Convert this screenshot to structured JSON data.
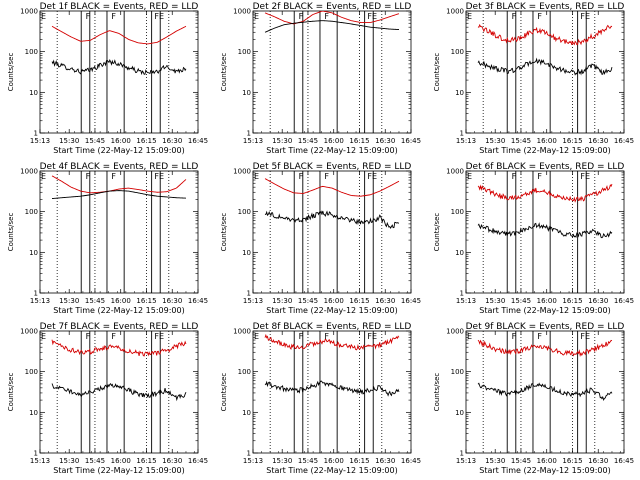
{
  "chart_data": [
    {
      "type": "line",
      "title": "Det 1f BLACK = Events, RED = LLD",
      "xlabel": "Start Time (22-May-12 15:09:00)",
      "ylabel": "Counts/sec",
      "yscale": "log",
      "ylim": [
        1,
        1000
      ],
      "xlim": [
        "15:13",
        "16:45"
      ],
      "y_ticks": [
        "1",
        "10",
        "100",
        "1000"
      ],
      "x_ticks": [
        "15:13",
        "15:30",
        "15:45",
        "16:00",
        "16:15",
        "16:30",
        "16:45"
      ],
      "series": [
        {
          "color": "#d40000",
          "shape": "red-smooth",
          "values": [
            420,
            310,
            230,
            180,
            190,
            260,
            330,
            280,
            200,
            165,
            155,
            170,
            230,
            320,
            420
          ]
        },
        {
          "color": "#000000",
          "shape": "black-noisy",
          "values": [
            55,
            45,
            38,
            32,
            35,
            46,
            58,
            50,
            40,
            33,
            30,
            32,
            44,
            32,
            40
          ]
        }
      ],
      "dotted_x": [
        "15:23",
        "15:45",
        "16:15",
        "16:28"
      ],
      "solid_x": [
        "15:37",
        "15:42",
        "15:52",
        "16:02",
        "16:18",
        "16:23"
      ],
      "markers": [
        {
          "label": "E",
          "x": "15:13"
        },
        {
          "label": "F",
          "x": "15:39"
        },
        {
          "label": "F",
          "x": "15:54"
        },
        {
          "label": "FE",
          "x": "16:19"
        }
      ]
    },
    {
      "type": "line",
      "title": "Det 2f BLACK = Events, RED = LLD",
      "xlabel": "Start Time (22-May-12 15:09:00)",
      "ylabel": "Counts/sec",
      "yscale": "log",
      "ylim": [
        1,
        1000
      ],
      "xlim": [
        "15:13",
        "16:45"
      ],
      "y_ticks": [
        "1",
        "10",
        "100",
        "1000"
      ],
      "x_ticks": [
        "15:13",
        "15:30",
        "15:45",
        "16:00",
        "16:15",
        "16:30",
        "16:45"
      ],
      "series": [
        {
          "color": "#d40000",
          "shape": "red-smooth",
          "values": [
            900,
            720,
            560,
            480,
            560,
            820,
            1000,
            900,
            700,
            580,
            520,
            520,
            600,
            720,
            860
          ]
        },
        {
          "color": "#000000",
          "shape": "black-smooth",
          "values": [
            300,
            380,
            460,
            500,
            530,
            560,
            580,
            560,
            520,
            480,
            440,
            400,
            380,
            360,
            350
          ]
        }
      ],
      "dotted_x": [
        "15:23",
        "15:45",
        "16:15",
        "16:28"
      ],
      "solid_x": [
        "15:37",
        "15:42",
        "15:52",
        "16:02",
        "16:18",
        "16:23"
      ],
      "markers": [
        {
          "label": "E",
          "x": "15:13"
        },
        {
          "label": "F",
          "x": "15:39"
        },
        {
          "label": "F",
          "x": "15:54"
        },
        {
          "label": "FE",
          "x": "16:19"
        }
      ]
    },
    {
      "type": "line",
      "title": "Det 3f BLACK = Events, RED = LLD",
      "xlabel": "Start Time (22-May-12 15:09:00)",
      "ylabel": "Counts/sec",
      "yscale": "log",
      "ylim": [
        1,
        1000
      ],
      "xlim": [
        "15:13",
        "16:45"
      ],
      "y_ticks": [
        "1",
        "10",
        "100",
        "1000"
      ],
      "x_ticks": [
        "15:13",
        "15:30",
        "15:45",
        "16:00",
        "16:15",
        "16:30",
        "16:45"
      ],
      "series": [
        {
          "color": "#d40000",
          "shape": "red-noisy",
          "values": [
            420,
            320,
            240,
            190,
            200,
            260,
            340,
            300,
            220,
            180,
            165,
            180,
            240,
            330,
            450
          ]
        },
        {
          "color": "#000000",
          "shape": "black-noisy",
          "values": [
            55,
            45,
            38,
            33,
            36,
            48,
            60,
            52,
            42,
            34,
            31,
            33,
            45,
            30,
            38
          ]
        }
      ],
      "dotted_x": [
        "15:23",
        "15:45",
        "16:15",
        "16:28"
      ],
      "solid_x": [
        "15:37",
        "15:42",
        "15:52",
        "16:02",
        "16:18",
        "16:23"
      ],
      "markers": [
        {
          "label": "E",
          "x": "15:13"
        },
        {
          "label": "F",
          "x": "15:39"
        },
        {
          "label": "F",
          "x": "15:54"
        },
        {
          "label": "FE",
          "x": "16:19"
        }
      ]
    },
    {
      "type": "line",
      "title": "Det 4f BLACK = Events, RED = LLD",
      "xlabel": "Start Time (22-May-12 15:09:00)",
      "ylabel": "Counts/sec",
      "yscale": "log",
      "ylim": [
        1,
        1000
      ],
      "xlim": [
        "15:13",
        "16:45"
      ],
      "y_ticks": [
        "1",
        "10",
        "100",
        "1000"
      ],
      "x_ticks": [
        "15:13",
        "15:30",
        "15:45",
        "16:00",
        "16:15",
        "16:30",
        "16:45"
      ],
      "series": [
        {
          "color": "#d40000",
          "shape": "red-smooth",
          "values": [
            760,
            560,
            400,
            320,
            290,
            300,
            320,
            360,
            380,
            350,
            320,
            300,
            310,
            380,
            620
          ]
        },
        {
          "color": "#000000",
          "shape": "black-smooth",
          "values": [
            210,
            220,
            230,
            240,
            260,
            290,
            320,
            330,
            320,
            290,
            260,
            240,
            230,
            220,
            215
          ]
        }
      ],
      "dotted_x": [
        "15:23",
        "15:45",
        "16:15",
        "16:28"
      ],
      "solid_x": [
        "15:37",
        "15:42",
        "15:52",
        "16:02",
        "16:18",
        "16:23"
      ],
      "markers": [
        {
          "label": "E",
          "x": "15:13"
        },
        {
          "label": "F",
          "x": "15:39"
        },
        {
          "label": "F",
          "x": "15:54"
        },
        {
          "label": "FE",
          "x": "16:19"
        }
      ]
    },
    {
      "type": "line",
      "title": "Det 5f BLACK = Events, RED = LLD",
      "xlabel": "Start Time (22-May-12 15:09:00)",
      "ylabel": "Counts/sec",
      "yscale": "log",
      "ylim": [
        1,
        1000
      ],
      "xlim": [
        "15:13",
        "16:45"
      ],
      "y_ticks": [
        "1",
        "10",
        "100",
        "1000"
      ],
      "x_ticks": [
        "15:13",
        "15:30",
        "15:45",
        "16:00",
        "16:15",
        "16:30",
        "16:45"
      ],
      "series": [
        {
          "color": "#d40000",
          "shape": "red-smooth",
          "values": [
            650,
            480,
            360,
            290,
            280,
            340,
            420,
            380,
            300,
            250,
            240,
            260,
            320,
            420,
            560
          ]
        },
        {
          "color": "#000000",
          "shape": "black-noisy",
          "values": [
            95,
            80,
            70,
            62,
            64,
            78,
            92,
            84,
            70,
            60,
            56,
            58,
            72,
            40,
            55
          ]
        }
      ],
      "dotted_x": [
        "15:23",
        "15:45",
        "16:15",
        "16:28"
      ],
      "solid_x": [
        "15:37",
        "15:42",
        "15:52",
        "16:02",
        "16:18",
        "16:23"
      ],
      "markers": [
        {
          "label": "E",
          "x": "15:13"
        },
        {
          "label": "F",
          "x": "15:39"
        },
        {
          "label": "F",
          "x": "15:54"
        },
        {
          "label": "FE",
          "x": "16:19"
        }
      ]
    },
    {
      "type": "line",
      "title": "Det 6f BLACK = Events, RED = LLD",
      "xlabel": "Start Time (22-May-12 15:09:00)",
      "ylabel": "Counts/sec",
      "yscale": "log",
      "ylim": [
        1,
        1000
      ],
      "xlim": [
        "15:13",
        "16:45"
      ],
      "y_ticks": [
        "1",
        "10",
        "100",
        "1000"
      ],
      "x_ticks": [
        "15:13",
        "15:30",
        "15:45",
        "16:00",
        "16:15",
        "16:30",
        "16:45"
      ],
      "series": [
        {
          "color": "#d40000",
          "shape": "red-noisy",
          "values": [
            420,
            330,
            260,
            220,
            230,
            280,
            340,
            310,
            250,
            210,
            200,
            210,
            260,
            330,
            420
          ]
        },
        {
          "color": "#000000",
          "shape": "black-noisy",
          "values": [
            45,
            38,
            32,
            28,
            30,
            38,
            48,
            42,
            35,
            28,
            26,
            28,
            36,
            24,
            30
          ]
        }
      ],
      "dotted_x": [
        "15:23",
        "15:45",
        "16:15",
        "16:28"
      ],
      "solid_x": [
        "15:37",
        "15:42",
        "15:52",
        "16:02",
        "16:18",
        "16:23"
      ],
      "markers": [
        {
          "label": "E",
          "x": "15:13"
        },
        {
          "label": "F",
          "x": "15:39"
        },
        {
          "label": "F",
          "x": "15:54"
        },
        {
          "label": "FE",
          "x": "16:19"
        }
      ]
    },
    {
      "type": "line",
      "title": "Det 7f BLACK = Events, RED = LLD",
      "xlabel": "Start Time (22-May-12 15:09:00)",
      "ylabel": "Counts/sec",
      "yscale": "log",
      "ylim": [
        1,
        1000
      ],
      "xlim": [
        "15:13",
        "16:45"
      ],
      "y_ticks": [
        "1",
        "10",
        "100",
        "1000"
      ],
      "x_ticks": [
        "15:13",
        "15:30",
        "15:45",
        "16:00",
        "16:15",
        "16:30",
        "16:45"
      ],
      "series": [
        {
          "color": "#d40000",
          "shape": "red-noisy",
          "values": [
            540,
            420,
            340,
            300,
            310,
            360,
            420,
            390,
            320,
            280,
            270,
            280,
            340,
            420,
            520
          ]
        },
        {
          "color": "#000000",
          "shape": "black-noisy",
          "values": [
            45,
            38,
            32,
            28,
            30,
            38,
            48,
            42,
            35,
            28,
            26,
            28,
            36,
            22,
            28
          ]
        }
      ],
      "dotted_x": [
        "15:23",
        "15:45",
        "16:15",
        "16:28"
      ],
      "solid_x": [
        "15:37",
        "15:42",
        "15:52",
        "16:02",
        "16:18",
        "16:23"
      ],
      "markers": [
        {
          "label": "E",
          "x": "15:13"
        },
        {
          "label": "F",
          "x": "15:39"
        },
        {
          "label": "F",
          "x": "15:54"
        },
        {
          "label": "FE",
          "x": "16:19"
        }
      ]
    },
    {
      "type": "line",
      "title": "Det 8f BLACK = Events, RED = LLD",
      "xlabel": "Start Time (22-May-12 15:09:00)",
      "ylabel": "Counts/sec",
      "yscale": "log",
      "ylim": [
        1,
        1000
      ],
      "xlim": [
        "15:13",
        "16:45"
      ],
      "y_ticks": [
        "1",
        "10",
        "100",
        "1000"
      ],
      "x_ticks": [
        "15:13",
        "15:30",
        "15:45",
        "16:00",
        "16:15",
        "16:30",
        "16:45"
      ],
      "series": [
        {
          "color": "#d40000",
          "shape": "red-noisy",
          "values": [
            720,
            560,
            460,
            400,
            420,
            480,
            560,
            520,
            440,
            400,
            380,
            400,
            460,
            560,
            700
          ]
        },
        {
          "color": "#000000",
          "shape": "black-noisy",
          "values": [
            52,
            44,
            38,
            34,
            36,
            44,
            55,
            48,
            40,
            34,
            32,
            34,
            42,
            28,
            35
          ]
        }
      ],
      "dotted_x": [
        "15:23",
        "15:45",
        "16:15",
        "16:28"
      ],
      "solid_x": [
        "15:37",
        "15:42",
        "15:52",
        "16:02",
        "16:18",
        "16:23"
      ],
      "markers": [
        {
          "label": "E",
          "x": "15:13"
        },
        {
          "label": "F",
          "x": "15:39"
        },
        {
          "label": "F",
          "x": "15:54"
        },
        {
          "label": "FE",
          "x": "16:19"
        }
      ]
    },
    {
      "type": "line",
      "title": "Det 9f BLACK = Events, RED = LLD",
      "xlabel": "Start Time (22-May-12 15:09:00)",
      "ylabel": "Counts/sec",
      "yscale": "log",
      "ylim": [
        1,
        1000
      ],
      "xlim": [
        "15:13",
        "16:45"
      ],
      "y_ticks": [
        "1",
        "10",
        "100",
        "1000"
      ],
      "x_ticks": [
        "15:13",
        "15:30",
        "15:45",
        "16:00",
        "16:15",
        "16:30",
        "16:45"
      ],
      "series": [
        {
          "color": "#d40000",
          "shape": "red-noisy",
          "values": [
            560,
            440,
            350,
            300,
            310,
            360,
            430,
            400,
            330,
            290,
            280,
            290,
            350,
            430,
            540
          ]
        },
        {
          "color": "#000000",
          "shape": "black-noisy",
          "values": [
            46,
            39,
            33,
            29,
            31,
            39,
            49,
            43,
            36,
            29,
            27,
            29,
            37,
            22,
            30
          ]
        }
      ],
      "dotted_x": [
        "15:23",
        "15:45",
        "16:15",
        "16:28"
      ],
      "solid_x": [
        "15:37",
        "15:42",
        "15:52",
        "16:02",
        "16:18",
        "16:23"
      ],
      "markers": [
        {
          "label": "E",
          "x": "15:13"
        },
        {
          "label": "F",
          "x": "15:39"
        },
        {
          "label": "F",
          "x": "15:54"
        },
        {
          "label": "FE",
          "x": "16:19"
        }
      ]
    }
  ]
}
